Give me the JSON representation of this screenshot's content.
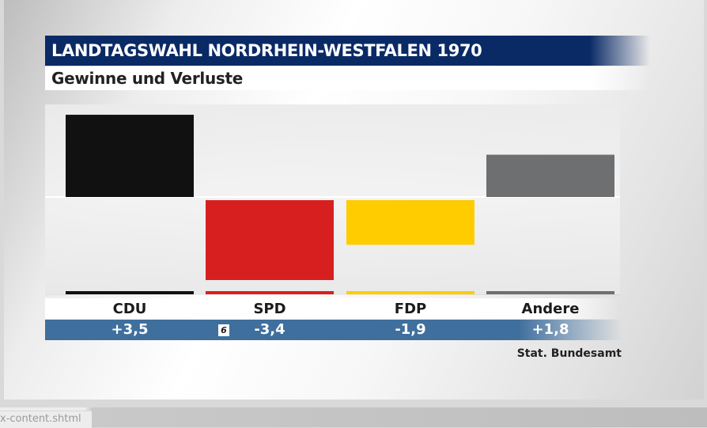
{
  "title": "LANDTAGSWAHL NORDRHEIN-WESTFALEN 1970",
  "subtitle": "Gewinne und Verluste",
  "source": "Stat. Bundesamt",
  "logo_glyph": "6",
  "footer_text": "x-content.shtml",
  "chart_data": {
    "type": "bar",
    "title": "LANDTAGSWAHL NORDRHEIN-WESTFALEN 1970",
    "subtitle": "Gewinne und Verluste",
    "categories": [
      "CDU",
      "SPD",
      "FDP",
      "Andere"
    ],
    "values": [
      3.5,
      -3.4,
      -1.9,
      1.8
    ],
    "value_labels": [
      "+3,5",
      "-3,4",
      "-1,9",
      "+1,8"
    ],
    "colors": [
      "#111111",
      "#d81f1f",
      "#ffcc00",
      "#6e6f71"
    ],
    "ylim": [
      -4,
      4
    ],
    "grid": false,
    "legend": "none"
  }
}
